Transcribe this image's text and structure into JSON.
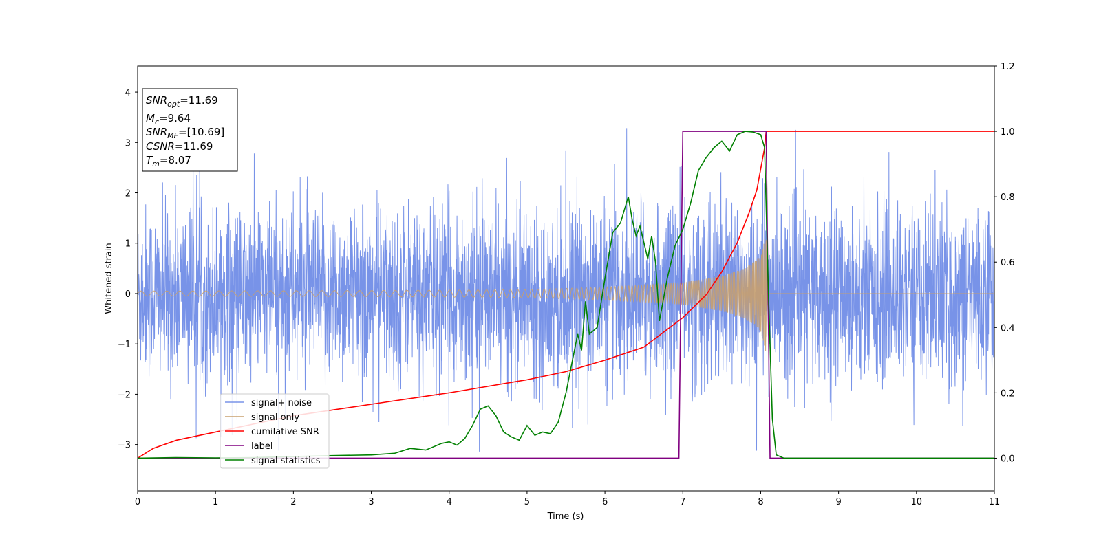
{
  "chart_data": {
    "type": "line",
    "xlabel": "Time (s)",
    "ylabel": "Whitened strain",
    "xlim": [
      0,
      11
    ],
    "ylim_left": [
      -3.92,
      4.52
    ],
    "ylim_right": [
      -0.1,
      1.2
    ],
    "x_ticks": [
      "0",
      "1",
      "2",
      "3",
      "4",
      "5",
      "6",
      "7",
      "8",
      "9",
      "10",
      "11"
    ],
    "y_left_ticks": [
      "−3",
      "−2",
      "−1",
      "0",
      "1",
      "2",
      "3",
      "4"
    ],
    "y_right_ticks": [
      "0.0",
      "0.2",
      "0.4",
      "0.6",
      "0.8",
      "1.0",
      "1.2"
    ],
    "colors": {
      "signal_noise": "#7893e8",
      "signal_only": "#c8a06e",
      "cumulative_snr": "#ff0000",
      "label": "#800080",
      "signal_statistics": "#008000"
    },
    "info_box": {
      "snr_opt_base": "SNR",
      "snr_opt_sub": "opt",
      "snr_opt_value": "=11.69",
      "mc_base": "M",
      "mc_sub": "c",
      "mc_value": "=9.64",
      "snr_mf_base": "SNR",
      "snr_mf_sub": "MF",
      "snr_mf_value": "=[10.69]",
      "csnr_base": "CSNR",
      "csnr_value": "=11.69",
      "tm_base": "T",
      "tm_sub": "m",
      "tm_value": "=8.07"
    },
    "legend": {
      "position": "lower-left",
      "signal_noise": "signal+ noise",
      "signal_only": "signal only",
      "cumulative_snr": "cumilative SNR",
      "label": "label",
      "signal_statistics": "signal statistics"
    },
    "series": [
      {
        "name": "signal+ noise",
        "axis": "left",
        "approximate_band": {
          "x_range": [
            0,
            11
          ],
          "typical_abs": 1.2,
          "max": 3.7,
          "min": -3.55
        }
      },
      {
        "name": "signal only",
        "axis": "left",
        "envelope": {
          "x": [
            0,
            3,
            5,
            6,
            6.5,
            7,
            7.5,
            7.8,
            8.0,
            8.07,
            8.1,
            11
          ],
          "amp": [
            0.05,
            0.06,
            0.08,
            0.13,
            0.17,
            0.22,
            0.35,
            0.5,
            0.75,
            1.2,
            0,
            0
          ]
        }
      },
      {
        "name": "cumilative SNR",
        "axis": "right",
        "x": [
          0,
          0.2,
          0.5,
          1,
          2,
          3,
          4,
          5,
          5.5,
          6,
          6.5,
          7,
          7.3,
          7.5,
          7.7,
          7.85,
          7.95,
          8.05,
          8.07,
          11
        ],
        "y": [
          0.0,
          0.03,
          0.055,
          0.08,
          0.13,
          0.165,
          0.2,
          0.24,
          0.265,
          0.3,
          0.34,
          0.43,
          0.5,
          0.57,
          0.66,
          0.75,
          0.82,
          0.95,
          1.0,
          1.0
        ]
      },
      {
        "name": "label",
        "axis": "right",
        "x": [
          0,
          6.95,
          7.0,
          8.07,
          8.12,
          11
        ],
        "y": [
          0,
          0,
          1,
          1,
          0,
          0
        ]
      },
      {
        "name": "signal statistics",
        "axis": "right",
        "x": [
          0,
          0.5,
          1,
          1.5,
          2,
          2.5,
          3,
          3.3,
          3.5,
          3.7,
          3.8,
          3.9,
          4.0,
          4.1,
          4.2,
          4.3,
          4.4,
          4.5,
          4.6,
          4.7,
          4.8,
          4.9,
          5.0,
          5.1,
          5.2,
          5.3,
          5.4,
          5.5,
          5.6,
          5.65,
          5.7,
          5.75,
          5.8,
          5.9,
          6.0,
          6.1,
          6.2,
          6.3,
          6.35,
          6.4,
          6.45,
          6.55,
          6.6,
          6.65,
          6.7,
          6.8,
          6.9,
          7.0,
          7.1,
          7.2,
          7.3,
          7.4,
          7.5,
          7.6,
          7.7,
          7.8,
          7.9,
          8.0,
          8.05,
          8.1,
          8.15,
          8.2,
          8.3,
          11
        ],
        "y": [
          0.0,
          0.002,
          0.001,
          0.002,
          0.005,
          0.008,
          0.01,
          0.015,
          0.03,
          0.025,
          0.035,
          0.045,
          0.05,
          0.04,
          0.06,
          0.1,
          0.15,
          0.16,
          0.13,
          0.08,
          0.065,
          0.055,
          0.1,
          0.07,
          0.08,
          0.075,
          0.11,
          0.2,
          0.32,
          0.38,
          0.33,
          0.48,
          0.38,
          0.4,
          0.55,
          0.69,
          0.72,
          0.8,
          0.73,
          0.68,
          0.71,
          0.61,
          0.68,
          0.6,
          0.42,
          0.55,
          0.65,
          0.7,
          0.78,
          0.88,
          0.92,
          0.95,
          0.97,
          0.94,
          0.99,
          1.0,
          0.998,
          0.99,
          0.95,
          0.5,
          0.12,
          0.01,
          0.0,
          0.0
        ]
      }
    ]
  }
}
